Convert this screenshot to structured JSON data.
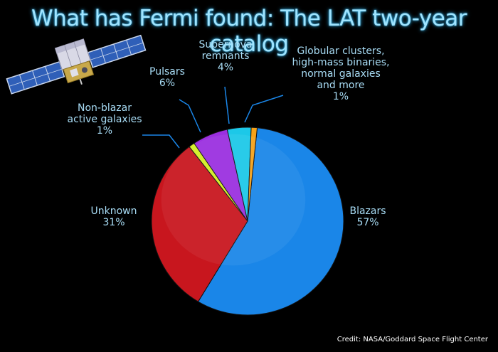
{
  "title": "What has Fermi found: The LAT two-year catalog",
  "credit": "Credit: NASA/Goddard Space Flight Center",
  "chart_data": {
    "type": "pie",
    "title": "What has Fermi found: The LAT two-year catalog",
    "slices": [
      {
        "name": "Blazars",
        "label_lines": [
          "Blazars",
          "57%"
        ],
        "value": 57,
        "color": "#1a86e8"
      },
      {
        "name": "Unknown",
        "label_lines": [
          "Unknown",
          "31%"
        ],
        "value": 31,
        "color": "#c8161e"
      },
      {
        "name": "Non-blazar active galaxies",
        "label_lines": [
          "Non-blazar",
          "active galaxies",
          "1%"
        ],
        "value": 1,
        "color": "#d4ee22"
      },
      {
        "name": "Pulsars",
        "label_lines": [
          "Pulsars",
          "6%"
        ],
        "value": 6,
        "color": "#9b2fe0"
      },
      {
        "name": "Supernova remnants",
        "label_lines": [
          "Supernova",
          "remnants",
          "4%"
        ],
        "value": 4,
        "color": "#1cc8e8"
      },
      {
        "name": "Globular clusters, high-mass binaries, normal galaxies and more",
        "label_lines": [
          "Globular clusters,",
          "high-mass binaries,",
          "normal galaxies",
          "and more",
          "1%"
        ],
        "value": 1,
        "color": "#f5a21a"
      }
    ]
  },
  "colors": {
    "background": "#000000",
    "label_text": "#a8dcf5",
    "leader_line": "#1a86e8"
  }
}
